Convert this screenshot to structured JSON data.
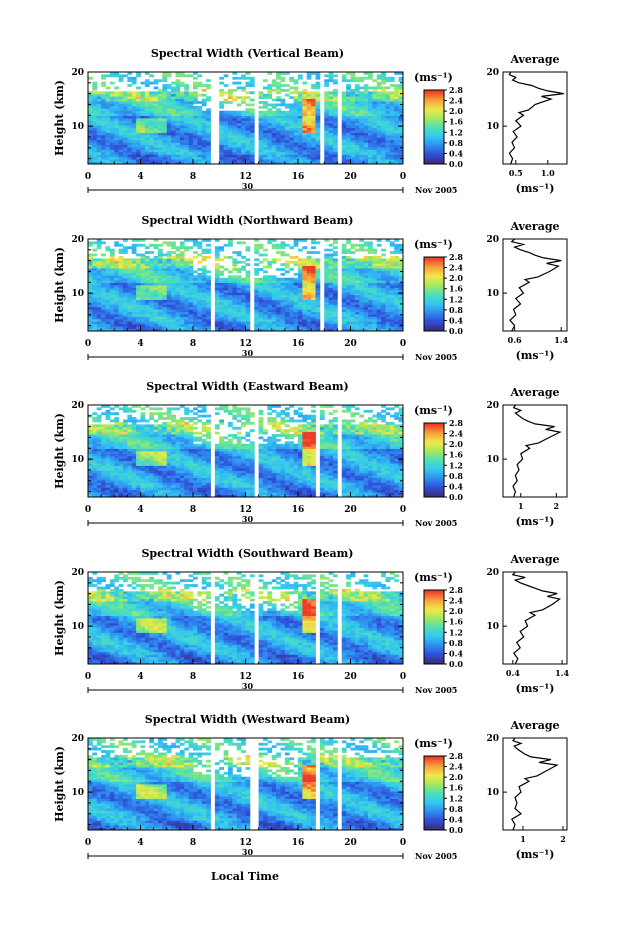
{
  "figure": {
    "xlabel": "Local Time",
    "date_label": "Nov 2005",
    "day_label": "30",
    "unit_label": "(ms⁻¹)",
    "avg_title": "Average",
    "avg_xlabel": "(ms⁻¹)"
  },
  "colorbar": {
    "ticks": [
      "0.0",
      "0.4",
      "0.8",
      "1.2",
      "1.6",
      "2.0",
      "2.4",
      "2.8"
    ],
    "stops": [
      "#3a2c7a",
      "#2f4fd8",
      "#2f8ff0",
      "#34c8f0",
      "#4ee0b4",
      "#a6e85a",
      "#f2e84a",
      "#f5a23a",
      "#ee3b2a"
    ]
  },
  "chart_data": [
    {
      "type": "heatmap",
      "title": "Spectral Width (Vertical Beam)",
      "ylabel": "Height (km)",
      "xlim": [
        0,
        24
      ],
      "ylim": [
        3,
        20
      ],
      "xticks": [
        "0",
        "4",
        "8",
        "12",
        "16",
        "20",
        "0"
      ],
      "yticks": [
        "10",
        "20"
      ],
      "gaps": [
        [
          9.5,
          9.9
        ],
        [
          12.6,
          13.1
        ],
        [
          17.6,
          17.9
        ],
        [
          19.0,
          19.3
        ]
      ],
      "average": {
        "title": "Average",
        "xlabel": "(ms⁻¹)",
        "xticks": [
          "0.5",
          "1.0"
        ],
        "xlim": [
          0.3,
          1.3
        ],
        "ylim": [
          3,
          20
        ],
        "profile": [
          [
            0.42,
            3
          ],
          [
            0.45,
            4
          ],
          [
            0.4,
            5
          ],
          [
            0.48,
            6
          ],
          [
            0.44,
            7
          ],
          [
            0.52,
            8
          ],
          [
            0.46,
            9
          ],
          [
            0.58,
            10
          ],
          [
            0.5,
            11
          ],
          [
            0.62,
            12
          ],
          [
            0.55,
            12.5
          ],
          [
            0.7,
            13
          ],
          [
            0.8,
            14
          ],
          [
            1.05,
            15
          ],
          [
            0.9,
            15.5
          ],
          [
            1.25,
            16
          ],
          [
            1.0,
            16.5
          ],
          [
            0.85,
            17
          ],
          [
            0.75,
            17.5
          ],
          [
            0.55,
            18
          ],
          [
            0.45,
            18.5
          ],
          [
            0.5,
            19
          ],
          [
            0.4,
            19.5
          ],
          [
            0.42,
            20
          ]
        ]
      }
    },
    {
      "type": "heatmap",
      "title": "Spectral Width (Northward Beam)",
      "ylabel": "Height (km)",
      "xlim": [
        0,
        24
      ],
      "ylim": [
        3,
        20
      ],
      "xticks": [
        "0",
        "4",
        "8",
        "12",
        "16",
        "20",
        "0"
      ],
      "yticks": [
        "10",
        "20"
      ],
      "gaps": [
        [
          9.3,
          9.7
        ],
        [
          12.4,
          12.8
        ],
        [
          17.6,
          17.9
        ],
        [
          19.0,
          19.3
        ]
      ],
      "average": {
        "title": "Average",
        "xlabel": "(ms⁻¹)",
        "xticks": [
          "0.6",
          "1.4"
        ],
        "xlim": [
          0.4,
          1.5
        ],
        "ylim": [
          3,
          20
        ],
        "profile": [
          [
            0.55,
            3
          ],
          [
            0.6,
            4
          ],
          [
            0.52,
            5
          ],
          [
            0.62,
            6
          ],
          [
            0.58,
            7
          ],
          [
            0.7,
            8
          ],
          [
            0.62,
            9
          ],
          [
            0.75,
            10
          ],
          [
            0.68,
            11
          ],
          [
            0.85,
            12
          ],
          [
            0.78,
            12.5
          ],
          [
            1.0,
            13
          ],
          [
            1.2,
            14
          ],
          [
            1.35,
            15
          ],
          [
            1.15,
            15.5
          ],
          [
            1.4,
            16
          ],
          [
            1.1,
            16.5
          ],
          [
            0.95,
            17
          ],
          [
            0.85,
            17.5
          ],
          [
            0.7,
            18
          ],
          [
            0.6,
            18.5
          ],
          [
            0.75,
            19
          ],
          [
            0.55,
            19.5
          ],
          [
            0.6,
            20
          ]
        ]
      }
    },
    {
      "type": "heatmap",
      "title": "Spectral Width (Eastward Beam)",
      "ylabel": "Height (km)",
      "xlim": [
        0,
        24
      ],
      "ylim": [
        3,
        20
      ],
      "xticks": [
        "0",
        "4",
        "8",
        "12",
        "16",
        "20",
        "0"
      ],
      "yticks": [
        "10",
        "20"
      ],
      "gaps": [
        [
          9.4,
          9.8
        ],
        [
          12.6,
          13.0
        ],
        [
          17.3,
          17.6
        ],
        [
          19.0,
          19.3
        ]
      ],
      "average": {
        "title": "Average",
        "xlabel": "(ms⁻¹)",
        "xticks": [
          "1",
          "2"
        ],
        "xlim": [
          0.5,
          2.3
        ],
        "ylim": [
          3,
          20
        ],
        "profile": [
          [
            0.8,
            3
          ],
          [
            0.85,
            4
          ],
          [
            0.78,
            5
          ],
          [
            0.9,
            6
          ],
          [
            0.85,
            7
          ],
          [
            0.95,
            8
          ],
          [
            0.9,
            9
          ],
          [
            1.05,
            10
          ],
          [
            1.0,
            11
          ],
          [
            1.25,
            12
          ],
          [
            1.15,
            12.5
          ],
          [
            1.5,
            13
          ],
          [
            1.8,
            14
          ],
          [
            2.1,
            15
          ],
          [
            1.7,
            15.5
          ],
          [
            1.95,
            16
          ],
          [
            1.4,
            16.5
          ],
          [
            1.2,
            17
          ],
          [
            1.05,
            17.5
          ],
          [
            0.95,
            18
          ],
          [
            0.85,
            18.5
          ],
          [
            1.0,
            19
          ],
          [
            0.8,
            19.5
          ],
          [
            0.85,
            20
          ]
        ]
      }
    },
    {
      "type": "heatmap",
      "title": "Spectral Width (Southward Beam)",
      "ylabel": "Height (km)",
      "xlim": [
        0,
        24
      ],
      "ylim": [
        3,
        20
      ],
      "xticks": [
        "0",
        "4",
        "8",
        "12",
        "16",
        "20",
        "0"
      ],
      "yticks": [
        "10",
        "20"
      ],
      "gaps": [
        [
          9.4,
          9.8
        ],
        [
          12.6,
          13.0
        ],
        [
          17.3,
          17.6
        ],
        [
          19.0,
          19.3
        ]
      ],
      "average": {
        "title": "Average",
        "xlabel": "(ms⁻¹)",
        "xticks": [
          "0.4",
          "1.4"
        ],
        "xlim": [
          0.2,
          1.5
        ],
        "ylim": [
          3,
          20
        ],
        "profile": [
          [
            0.45,
            3
          ],
          [
            0.5,
            4
          ],
          [
            0.42,
            5
          ],
          [
            0.55,
            6
          ],
          [
            0.48,
            7
          ],
          [
            0.62,
            8
          ],
          [
            0.55,
            9
          ],
          [
            0.7,
            10
          ],
          [
            0.65,
            11
          ],
          [
            0.85,
            12
          ],
          [
            0.75,
            12.5
          ],
          [
            1.0,
            13
          ],
          [
            1.2,
            14
          ],
          [
            1.35,
            15
          ],
          [
            1.1,
            15.5
          ],
          [
            1.3,
            16
          ],
          [
            1.0,
            16.5
          ],
          [
            0.85,
            17
          ],
          [
            0.7,
            17.5
          ],
          [
            0.55,
            18
          ],
          [
            0.45,
            18.5
          ],
          [
            0.65,
            19
          ],
          [
            0.4,
            19.5
          ],
          [
            0.45,
            20
          ]
        ]
      }
    },
    {
      "type": "heatmap",
      "title": "Spectral Width (Westward Beam)",
      "ylabel": "Height (km)",
      "xlim": [
        0,
        24
      ],
      "ylim": [
        3,
        20
      ],
      "xticks": [
        "0",
        "4",
        "8",
        "12",
        "16",
        "20",
        "0"
      ],
      "yticks": [
        "10",
        "20"
      ],
      "gaps": [
        [
          9.3,
          9.7
        ],
        [
          12.5,
          12.9
        ],
        [
          17.3,
          17.6
        ],
        [
          19.0,
          19.3
        ]
      ],
      "average": {
        "title": "Average",
        "xlabel": "(ms⁻¹)",
        "xticks": [
          "1",
          "2"
        ],
        "xlim": [
          0.5,
          2.1
        ],
        "ylim": [
          3,
          20
        ],
        "profile": [
          [
            0.75,
            3
          ],
          [
            0.8,
            4
          ],
          [
            0.72,
            5
          ],
          [
            0.95,
            6
          ],
          [
            0.8,
            7
          ],
          [
            0.85,
            8
          ],
          [
            0.8,
            9
          ],
          [
            0.95,
            10
          ],
          [
            0.9,
            11
          ],
          [
            1.15,
            12
          ],
          [
            1.05,
            12.5
          ],
          [
            1.35,
            13
          ],
          [
            1.6,
            14
          ],
          [
            1.85,
            15
          ],
          [
            1.4,
            15.5
          ],
          [
            1.7,
            16
          ],
          [
            1.2,
            16.5
          ],
          [
            1.05,
            17
          ],
          [
            0.95,
            17.5
          ],
          [
            0.85,
            18
          ],
          [
            0.78,
            18.5
          ],
          [
            0.95,
            19
          ],
          [
            0.75,
            19.5
          ],
          [
            0.8,
            20
          ]
        ]
      }
    }
  ]
}
